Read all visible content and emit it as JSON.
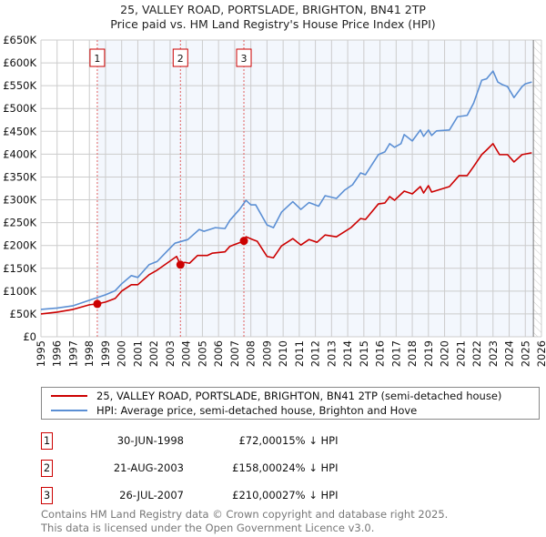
{
  "title": "25, VALLEY ROAD, PORTSLADE, BRIGHTON, BN41 2TP",
  "subtitle": "Price paid vs. HM Land Registry's House Price Index (HPI)",
  "chart_data": {
    "type": "line",
    "title": "25, VALLEY ROAD, PORTSLADE, BRIGHTON, BN41 2TP — Price paid vs. HM Land Registry's House Price Index (HPI)",
    "xlim": [
      1995,
      2026
    ],
    "ylim": [
      0,
      650000
    ],
    "x_ticks": [
      "1995",
      "1996",
      "1997",
      "1998",
      "1999",
      "2000",
      "2001",
      "2002",
      "2003",
      "2004",
      "2005",
      "2006",
      "2007",
      "2008",
      "2009",
      "2010",
      "2011",
      "2012",
      "2013",
      "2014",
      "2015",
      "2016",
      "2017",
      "2018",
      "2019",
      "2020",
      "2021",
      "2022",
      "2023",
      "2024",
      "2025",
      "2026"
    ],
    "y_ticks": [
      {
        "v": 0,
        "label": "£0"
      },
      {
        "v": 50000,
        "label": "£50K"
      },
      {
        "v": 100000,
        "label": "£100K"
      },
      {
        "v": 150000,
        "label": "£150K"
      },
      {
        "v": 200000,
        "label": "£200K"
      },
      {
        "v": 250000,
        "label": "£250K"
      },
      {
        "v": 300000,
        "label": "£300K"
      },
      {
        "v": 350000,
        "label": "£350K"
      },
      {
        "v": 400000,
        "label": "£400K"
      },
      {
        "v": 450000,
        "label": "£450K"
      },
      {
        "v": 500000,
        "label": "£500K"
      },
      {
        "v": 550000,
        "label": "£550K"
      },
      {
        "v": 600000,
        "label": "£600K"
      },
      {
        "v": 650000,
        "label": "£650K"
      }
    ],
    "grid": true,
    "series": [
      {
        "name": "25, VALLEY ROAD, PORTSLADE, BRIGHTON, BN41 2TP (semi-detached house)",
        "color": "#cc0000",
        "x": [
          1995,
          1996,
          1997,
          1998,
          1998.49,
          1999,
          1999.6,
          2000,
          2000.6,
          2001,
          2001.7,
          2002.2,
          2002.8,
          2003.4,
          2003.64,
          2003.9,
          2004.2,
          2004.7,
          2005.3,
          2005.6,
          2006.4,
          2006.7,
          2007.3,
          2007.57,
          2007.7,
          2008.1,
          2008.4,
          2009,
          2009.4,
          2009.9,
          2010.6,
          2011.1,
          2011.6,
          2012.1,
          2012.6,
          2013.3,
          2014.2,
          2014.8,
          2015.1,
          2015.9,
          2016.3,
          2016.6,
          2016.9,
          2017.5,
          2018,
          2018.5,
          2018.7,
          2019,
          2019.2,
          2020.3,
          2020.9,
          2021.4,
          2021.8,
          2022.3,
          2022.6,
          2023,
          2023.4,
          2023.9,
          2024.3,
          2024.8,
          2025.4
        ],
        "y": [
          50000,
          54000,
          60000,
          70000,
          72000,
          76000,
          84000,
          100000,
          114000,
          114000,
          136000,
          146000,
          161000,
          176000,
          158000,
          163000,
          161000,
          178000,
          178000,
          183000,
          186000,
          198000,
          206000,
          210000,
          219000,
          213000,
          209000,
          176000,
          173000,
          199000,
          215000,
          201000,
          213000,
          207000,
          223000,
          219000,
          239000,
          259000,
          257000,
          291000,
          293000,
          307000,
          299000,
          319000,
          313000,
          329000,
          315000,
          331000,
          317000,
          329000,
          353000,
          353000,
          373000,
          399000,
          409000,
          423000,
          399000,
          399000,
          383000,
          399000,
          403000
        ]
      },
      {
        "name": "HPI: Average price, semi-detached house, Brighton and Hove",
        "color": "#5b8fd4",
        "x": [
          1995,
          1996,
          1997,
          1998,
          1999,
          1999.6,
          2000,
          2000.6,
          2001,
          2001.7,
          2002.2,
          2002.8,
          2003.3,
          2004.1,
          2004.8,
          2005.1,
          2005.8,
          2006.4,
          2006.7,
          2007.3,
          2007.7,
          2008,
          2008.3,
          2009,
          2009.4,
          2009.9,
          2010.6,
          2011.1,
          2011.6,
          2012.2,
          2012.6,
          2013.3,
          2013.8,
          2014.3,
          2014.8,
          2015.1,
          2015.9,
          2016.3,
          2016.6,
          2016.9,
          2017.3,
          2017.5,
          2018,
          2018.5,
          2018.7,
          2019,
          2019.2,
          2019.5,
          2020.3,
          2020.8,
          2021.4,
          2021.8,
          2022.3,
          2022.6,
          2023,
          2023.3,
          2023.6,
          2023.9,
          2024.3,
          2024.8,
          2025,
          2025.4
        ],
        "y": [
          60000,
          63000,
          68000,
          80000,
          92000,
          101000,
          116000,
          134000,
          130000,
          158000,
          165000,
          187000,
          205000,
          213000,
          235000,
          231000,
          239000,
          237000,
          255000,
          279000,
          299000,
          289000,
          289000,
          245000,
          239000,
          273000,
          296000,
          279000,
          294000,
          286000,
          309000,
          303000,
          321000,
          333000,
          359000,
          355000,
          399000,
          405000,
          423000,
          415000,
          423000,
          443000,
          429000,
          453000,
          439000,
          453000,
          441000,
          451000,
          453000,
          482000,
          485000,
          512000,
          562000,
          565000,
          582000,
          558000,
          552000,
          548000,
          524000,
          548000,
          554000,
          558000
        ]
      }
    ],
    "sales": [
      {
        "n": "1",
        "x": 1998.49,
        "price": 72000,
        "date": "30-JUN-1998",
        "price_label": "£72,000",
        "hpi": "15% ↓ HPI"
      },
      {
        "n": "2",
        "x": 2003.64,
        "price": 158000,
        "date": "21-AUG-2003",
        "price_label": "£158,000",
        "hpi": "24% ↓ HPI"
      },
      {
        "n": "3",
        "x": 2007.57,
        "price": 210000,
        "date": "26-JUL-2007",
        "price_label": "£210,000",
        "hpi": "27% ↓ HPI"
      }
    ],
    "data_end": 2025.5
  },
  "legend": {
    "red": "25, VALLEY ROAD, PORTSLADE, BRIGHTON, BN41 2TP (semi-detached house)",
    "blue": "HPI: Average price, semi-detached house, Brighton and Hove"
  },
  "footer": {
    "line1": "Contains HM Land Registry data © Crown copyright and database right 2025.",
    "line2": "This data is licensed under the Open Government Licence v3.0."
  }
}
